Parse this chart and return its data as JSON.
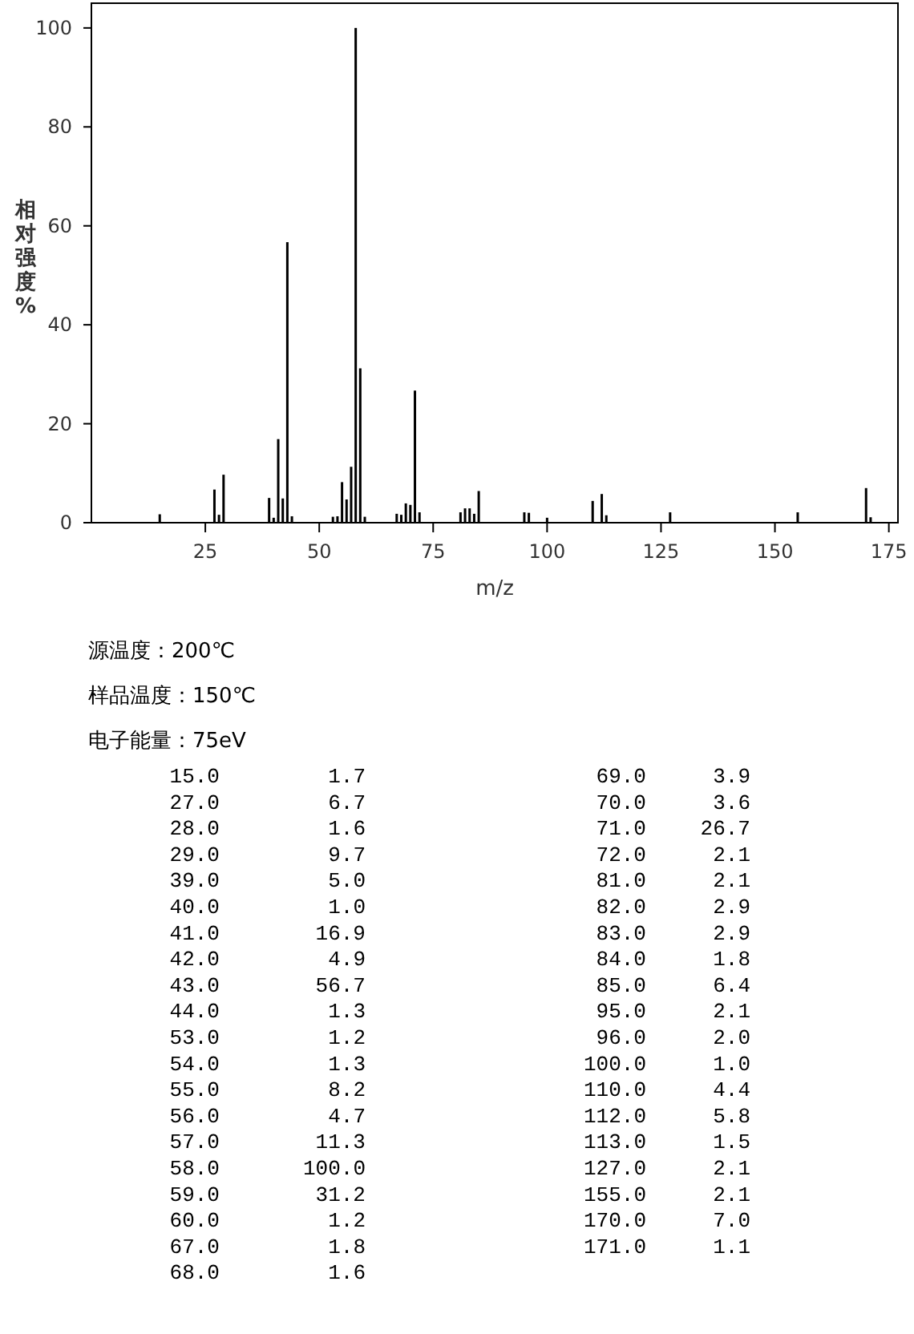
{
  "chart_data": {
    "type": "bar",
    "xlabel": "m/z",
    "ylabel": "相对强度%",
    "color": "#000000",
    "x": [
      15,
      27,
      28,
      29,
      39,
      40,
      41,
      42,
      43,
      44,
      53,
      54,
      55,
      56,
      57,
      58,
      59,
      60,
      67,
      68,
      69,
      70,
      71,
      72,
      81,
      82,
      83,
      84,
      85,
      95,
      96,
      100,
      110,
      112,
      113,
      127,
      155,
      170,
      171
    ],
    "values": [
      1.7,
      6.7,
      1.6,
      9.7,
      5.0,
      1.0,
      16.9,
      4.9,
      56.7,
      1.3,
      1.2,
      1.3,
      8.2,
      4.7,
      11.3,
      100.0,
      31.2,
      1.2,
      1.8,
      1.6,
      3.9,
      3.6,
      26.7,
      2.1,
      2.1,
      2.9,
      2.9,
      1.8,
      6.4,
      2.1,
      2.0,
      1.0,
      4.4,
      5.8,
      1.5,
      2.1,
      2.1,
      7.0,
      1.1
    ],
    "xlim": [
      0,
      177
    ],
    "xticks": [
      25,
      50,
      75,
      100,
      125,
      150,
      175
    ],
    "ylim": [
      0,
      105
    ],
    "yticks": [
      0,
      20,
      40,
      60,
      80,
      100
    ],
    "annotations": [
      "源温度：200℃",
      "样品温度：150℃",
      "电子能量：75eV",
      "15.0",
      "1.7",
      "27.0",
      "6.7",
      "28.0",
      "1.6",
      "29.0",
      "9.7",
      "39.0",
      "5.0",
      "40.0",
      "1.0",
      "41.0",
      "16.9",
      "42.0",
      "4.9",
      "43.0",
      "56.7",
      "44.0",
      "1.3",
      "53.0",
      "1.2",
      "54.0",
      "1.3",
      "55.0",
      "8.2",
      "56.0",
      "4.7",
      "57.0",
      "11.3",
      "58.0",
      "100.0",
      "59.0",
      "31.2",
      "60.0",
      "1.2",
      "67.0",
      "1.8",
      "68.0",
      "1.6",
      "69.0",
      "3.9",
      "70.0",
      "3.6",
      "71.0",
      "26.7",
      "72.0",
      "2.1",
      "81.0",
      "2.1",
      "82.0",
      "2.9",
      "83.0",
      "2.9",
      "84.0",
      "1.8",
      "85.0",
      "6.4",
      "95.0",
      "2.1",
      "96.0",
      "2.0",
      "100.0",
      "1.0",
      "110.0",
      "4.4",
      "112.0",
      "5.8",
      "113.0",
      "1.5",
      "127.0",
      "2.1",
      "155.0",
      "2.1",
      "170.0",
      "7.0",
      "171.0",
      "1.1"
    ]
  }
}
